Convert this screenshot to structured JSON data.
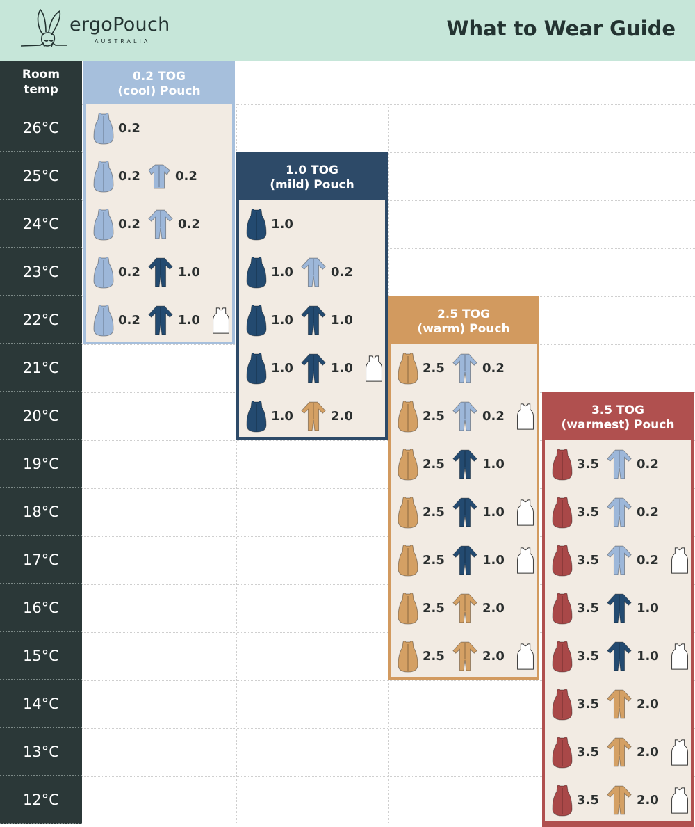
{
  "header": {
    "brand": "ergoPouch",
    "brand_sub": "AUSTRALIA",
    "title": "What to Wear Guide"
  },
  "temp_column": {
    "heading_line1": "Room",
    "heading_line2": "temp",
    "temps": [
      "26°C",
      "25°C",
      "24°C",
      "23°C",
      "22°C",
      "21°C",
      "20°C",
      "19°C",
      "18°C",
      "17°C",
      "16°C",
      "15°C",
      "14°C",
      "13°C",
      "12°C"
    ]
  },
  "colors": {
    "header_bg": "#c6e6d9",
    "temp_column_bg": "#2b3838",
    "panel_bg": "#f2ebe3",
    "cool": "#9db7d9",
    "mild": "#234a70",
    "warm": "#d4a064",
    "warmest": "#a94848",
    "vest": "#ffffff"
  },
  "sections": [
    {
      "title_line1": "0.2 TOG",
      "title_line2": "(cool) Pouch",
      "tone": "cool",
      "border": "#a6bfdc",
      "rows": [
        {
          "temp": "26°C",
          "items": [
            {
              "icon": "sleeping-bag",
              "tone": "cool",
              "tog": "0.2"
            }
          ]
        },
        {
          "temp": "25°C",
          "items": [
            {
              "icon": "sleeping-bag",
              "tone": "cool",
              "tog": "0.2"
            },
            {
              "icon": "short-sleeve-romper",
              "tone": "cool",
              "tog": "0.2"
            }
          ]
        },
        {
          "temp": "24°C",
          "items": [
            {
              "icon": "sleeping-bag",
              "tone": "cool",
              "tog": "0.2"
            },
            {
              "icon": "long-sleeve-suit",
              "tone": "cool",
              "tog": "0.2"
            }
          ]
        },
        {
          "temp": "23°C",
          "items": [
            {
              "icon": "sleeping-bag",
              "tone": "cool",
              "tog": "0.2"
            },
            {
              "icon": "long-sleeve-suit",
              "tone": "mild",
              "tog": "1.0"
            }
          ]
        },
        {
          "temp": "22°C",
          "items": [
            {
              "icon": "sleeping-bag",
              "tone": "cool",
              "tog": "0.2"
            },
            {
              "icon": "long-sleeve-suit",
              "tone": "mild",
              "tog": "1.0"
            },
            {
              "icon": "vest",
              "tone": "vest",
              "tog": ""
            }
          ]
        }
      ]
    },
    {
      "title_line1": "1.0 TOG",
      "title_line2": "(mild) Pouch",
      "tone": "mild",
      "border": "#2d4a68",
      "rows": [
        {
          "temp": "24°C",
          "items": [
            {
              "icon": "sleeping-bag",
              "tone": "mild",
              "tog": "1.0"
            }
          ]
        },
        {
          "temp": "23°C",
          "items": [
            {
              "icon": "sleeping-bag",
              "tone": "mild",
              "tog": "1.0"
            },
            {
              "icon": "long-sleeve-suit",
              "tone": "cool",
              "tog": "0.2"
            }
          ]
        },
        {
          "temp": "22°C",
          "items": [
            {
              "icon": "sleeping-bag",
              "tone": "mild",
              "tog": "1.0"
            },
            {
              "icon": "long-sleeve-suit",
              "tone": "mild",
              "tog": "1.0"
            }
          ]
        },
        {
          "temp": "21°C",
          "items": [
            {
              "icon": "sleeping-bag",
              "tone": "mild",
              "tog": "1.0"
            },
            {
              "icon": "long-sleeve-suit",
              "tone": "mild",
              "tog": "1.0"
            },
            {
              "icon": "vest",
              "tone": "vest",
              "tog": ""
            }
          ]
        },
        {
          "temp": "20°C",
          "items": [
            {
              "icon": "sleeping-bag",
              "tone": "mild",
              "tog": "1.0"
            },
            {
              "icon": "long-sleeve-suit",
              "tone": "warm",
              "tog": "2.0"
            }
          ]
        }
      ]
    },
    {
      "title_line1": "2.5 TOG",
      "title_line2": "(warm) Pouch",
      "tone": "warm",
      "border": "#d29a5f",
      "rows": [
        {
          "temp": "21°C",
          "items": [
            {
              "icon": "sleeping-bag",
              "tone": "warm",
              "tog": "2.5"
            },
            {
              "icon": "long-sleeve-suit",
              "tone": "cool",
              "tog": "0.2"
            }
          ]
        },
        {
          "temp": "20°C",
          "items": [
            {
              "icon": "sleeping-bag",
              "tone": "warm",
              "tog": "2.5"
            },
            {
              "icon": "long-sleeve-suit",
              "tone": "cool",
              "tog": "0.2"
            },
            {
              "icon": "vest",
              "tone": "vest",
              "tog": ""
            }
          ]
        },
        {
          "temp": "19°C",
          "items": [
            {
              "icon": "sleeping-bag",
              "tone": "warm",
              "tog": "2.5"
            },
            {
              "icon": "long-sleeve-suit",
              "tone": "mild",
              "tog": "1.0"
            }
          ]
        },
        {
          "temp": "18°C",
          "items": [
            {
              "icon": "sleeping-bag",
              "tone": "warm",
              "tog": "2.5"
            },
            {
              "icon": "long-sleeve-suit",
              "tone": "mild",
              "tog": "1.0"
            },
            {
              "icon": "vest",
              "tone": "vest",
              "tog": ""
            }
          ]
        },
        {
          "temp": "17°C",
          "items": [
            {
              "icon": "sleeping-bag",
              "tone": "warm",
              "tog": "2.5"
            },
            {
              "icon": "long-sleeve-suit",
              "tone": "mild",
              "tog": "1.0"
            },
            {
              "icon": "vest",
              "tone": "vest",
              "tog": ""
            }
          ]
        },
        {
          "temp": "16°C",
          "items": [
            {
              "icon": "sleeping-bag",
              "tone": "warm",
              "tog": "2.5"
            },
            {
              "icon": "long-sleeve-suit",
              "tone": "warm",
              "tog": "2.0"
            }
          ]
        },
        {
          "temp": "15°C",
          "items": [
            {
              "icon": "sleeping-bag",
              "tone": "warm",
              "tog": "2.5"
            },
            {
              "icon": "long-sleeve-suit",
              "tone": "warm",
              "tog": "2.0"
            },
            {
              "icon": "vest",
              "tone": "vest",
              "tog": ""
            }
          ]
        }
      ]
    },
    {
      "title_line1": "3.5 TOG",
      "title_line2": "(warmest) Pouch",
      "tone": "warmest",
      "border": "#b0504f",
      "rows": [
        {
          "temp": "19°C",
          "items": [
            {
              "icon": "sleeping-bag",
              "tone": "warmest",
              "tog": "3.5"
            },
            {
              "icon": "long-sleeve-suit",
              "tone": "cool",
              "tog": "0.2"
            }
          ]
        },
        {
          "temp": "18°C",
          "items": [
            {
              "icon": "sleeping-bag",
              "tone": "warmest",
              "tog": "3.5"
            },
            {
              "icon": "long-sleeve-suit",
              "tone": "cool",
              "tog": "0.2"
            }
          ]
        },
        {
          "temp": "17°C",
          "items": [
            {
              "icon": "sleeping-bag",
              "tone": "warmest",
              "tog": "3.5"
            },
            {
              "icon": "long-sleeve-suit",
              "tone": "cool",
              "tog": "0.2"
            },
            {
              "icon": "vest",
              "tone": "vest",
              "tog": ""
            }
          ]
        },
        {
          "temp": "16°C",
          "items": [
            {
              "icon": "sleeping-bag",
              "tone": "warmest",
              "tog": "3.5"
            },
            {
              "icon": "long-sleeve-suit",
              "tone": "mild",
              "tog": "1.0"
            }
          ]
        },
        {
          "temp": "15°C",
          "items": [
            {
              "icon": "sleeping-bag",
              "tone": "warmest",
              "tog": "3.5"
            },
            {
              "icon": "long-sleeve-suit",
              "tone": "mild",
              "tog": "1.0"
            },
            {
              "icon": "vest",
              "tone": "vest",
              "tog": ""
            }
          ]
        },
        {
          "temp": "14°C",
          "items": [
            {
              "icon": "sleeping-bag",
              "tone": "warmest",
              "tog": "3.5"
            },
            {
              "icon": "long-sleeve-suit",
              "tone": "warm",
              "tog": "2.0"
            }
          ]
        },
        {
          "temp": "13°C",
          "items": [
            {
              "icon": "sleeping-bag",
              "tone": "warmest",
              "tog": "3.5"
            },
            {
              "icon": "long-sleeve-suit",
              "tone": "warm",
              "tog": "2.0"
            },
            {
              "icon": "vest",
              "tone": "vest",
              "tog": ""
            }
          ]
        },
        {
          "temp": "12°C",
          "items": [
            {
              "icon": "sleeping-bag",
              "tone": "warmest",
              "tog": "3.5"
            },
            {
              "icon": "long-sleeve-suit",
              "tone": "warm",
              "tog": "2.0"
            },
            {
              "icon": "vest",
              "tone": "vest",
              "tog": ""
            }
          ]
        }
      ]
    }
  ]
}
